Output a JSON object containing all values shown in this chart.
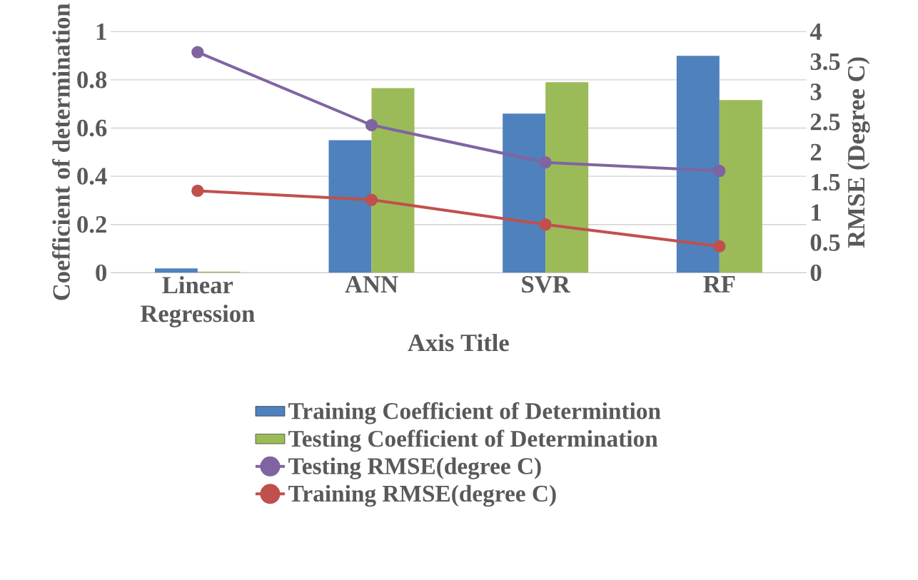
{
  "chart_data": {
    "type": "bar",
    "categories": [
      "Linear Regression",
      "ANN",
      "SVR",
      "RF"
    ],
    "xlabel": "Axis Title",
    "ylabel": "Coefficient of determination",
    "y2label": "RMSE (Degree C)",
    "ylim": [
      0,
      1
    ],
    "yticks": [
      0,
      0.2,
      0.4,
      0.6,
      0.8,
      1
    ],
    "y2lim": [
      0,
      4
    ],
    "y2ticks": [
      0,
      0.5,
      1,
      1.5,
      2,
      2.5,
      3,
      3.5,
      4
    ],
    "grid": "y",
    "legend": "bottom",
    "marker": "circle",
    "series": [
      {
        "name": "Training Coefficient  of Determintion",
        "color": "#4f81bd",
        "values": [
          0.018,
          0.55,
          0.66,
          0.9
        ]
      },
      {
        "name": "Testing Coefficient of Determination",
        "color": "#9bbb59",
        "values": [
          0.005,
          0.766,
          0.79,
          0.716
        ]
      },
      {
        "name": "Testing RMSE(degree C)",
        "type": "line",
        "axis": "y2",
        "color": "#8064a2",
        "values": [
          3.66,
          2.45,
          1.83,
          1.69
        ]
      },
      {
        "name": "Training RMSE(degree C)",
        "type": "line",
        "axis": "y2",
        "color": "#c0504d",
        "values": [
          1.36,
          1.21,
          0.8,
          0.44
        ]
      }
    ]
  }
}
